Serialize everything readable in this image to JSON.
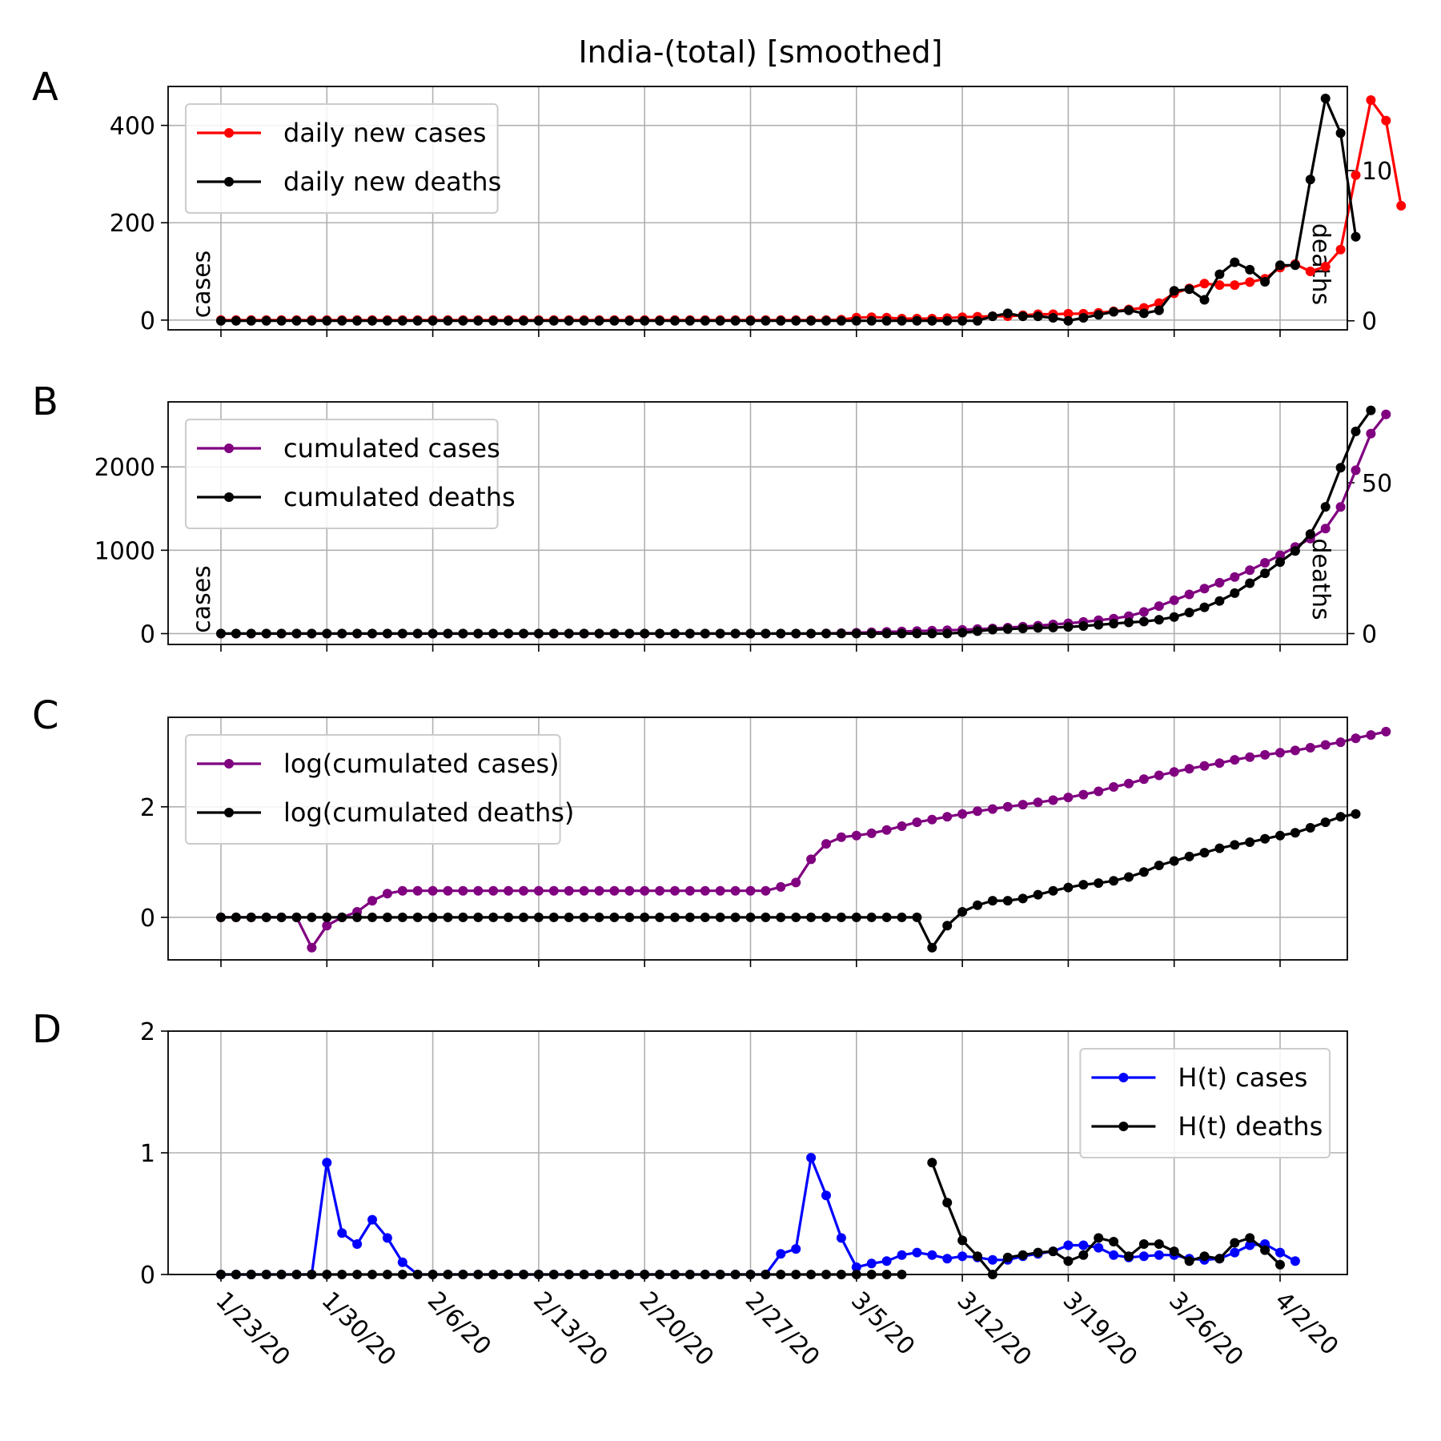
{
  "title": "India-(total) [smoothed]",
  "dates": [
    "1/23/20",
    "1/30/20",
    "2/6/20",
    "2/13/20",
    "2/20/20",
    "2/27/20",
    "3/5/20",
    "3/12/20",
    "3/19/20",
    "3/26/20",
    "4/2/20"
  ],
  "colors": {
    "cases_daily": "#ff0000",
    "cases_cum": "#800080",
    "cases_ht": "#0000ff",
    "deaths": "#000000",
    "grid": "#b0b0b0"
  },
  "chart_data": [
    {
      "panel_label": "A",
      "type": "line",
      "title": "India-(total) [smoothed]",
      "ylabel": "cases",
      "y2label": "deaths",
      "ylim": [
        -20,
        480
      ],
      "y2lim": [
        -0.6,
        15.6
      ],
      "yticks": [
        0,
        200,
        400
      ],
      "y2ticks": [
        0,
        10
      ],
      "grid": true,
      "legend_position": "top-left",
      "series": [
        {
          "name": "daily new cases",
          "axis": "left",
          "color": "#ff0000",
          "start": 0,
          "values": [
            0,
            0,
            0,
            0,
            0,
            0,
            0,
            0,
            0,
            0,
            0,
            0,
            0,
            0,
            0,
            0,
            0,
            0,
            0,
            0,
            0,
            0,
            0,
            0,
            0,
            0,
            0,
            0,
            0,
            0,
            0,
            0,
            0,
            0,
            0,
            0,
            0,
            0,
            0,
            0,
            0,
            1,
            5,
            6,
            5,
            3,
            3,
            3,
            4,
            6,
            7,
            8,
            8,
            10,
            12,
            12,
            13,
            13,
            15,
            18,
            22,
            25,
            35,
            55,
            65,
            75,
            72,
            72,
            78,
            85,
            108,
            115,
            100,
            110,
            145,
            298,
            452,
            410,
            235
          ]
        },
        {
          "name": "daily new deaths",
          "axis": "right",
          "color": "#000000",
          "start": 0,
          "values": [
            0,
            0,
            0,
            0,
            0,
            0,
            0,
            0,
            0,
            0,
            0,
            0,
            0,
            0,
            0,
            0,
            0,
            0,
            0,
            0,
            0,
            0,
            0,
            0,
            0,
            0,
            0,
            0,
            0,
            0,
            0,
            0,
            0,
            0,
            0,
            0,
            0,
            0,
            0,
            0,
            0,
            0,
            0,
            0,
            0,
            0,
            0,
            0,
            0,
            0,
            0,
            0.3,
            0.5,
            0.3,
            0.3,
            0.2,
            0,
            0.2,
            0.4,
            0.6,
            0.7,
            0.5,
            0.7,
            2,
            2.1,
            1.4,
            3.1,
            3.9,
            3.4,
            2.6,
            3.7,
            3.7,
            9.4,
            14.8,
            12.5,
            5.6
          ]
        }
      ]
    },
    {
      "panel_label": "B",
      "type": "line",
      "ylabel": "cases",
      "y2label": "deaths",
      "ylim": [
        -130,
        2780
      ],
      "y2lim": [
        -3.6,
        76.8
      ],
      "yticks": [
        0,
        1000,
        2000
      ],
      "y2ticks": [
        0,
        50
      ],
      "grid": true,
      "legend_position": "top-left",
      "series": [
        {
          "name": "cumulated cases",
          "axis": "left",
          "color": "#800080",
          "start": 0,
          "values": [
            0,
            0,
            0,
            0,
            0,
            0,
            0,
            0,
            0,
            0,
            0,
            0,
            0,
            0,
            0,
            0,
            0,
            0,
            0,
            0,
            0,
            0,
            0,
            0,
            0,
            0,
            0,
            0,
            0,
            0,
            0,
            0,
            0,
            0,
            0,
            0,
            0,
            0,
            0,
            0,
            3,
            5,
            10,
            16,
            21,
            26,
            31,
            35,
            40,
            46,
            54,
            62,
            72,
            84,
            96,
            110,
            124,
            140,
            160,
            180,
            210,
            260,
            330,
            400,
            470,
            540,
            610,
            680,
            760,
            850,
            940,
            1040,
            1140,
            1260,
            1520,
            1960,
            2400,
            2630
          ]
        },
        {
          "name": "cumulated deaths",
          "axis": "right",
          "color": "#000000",
          "start": 0,
          "values": [
            0,
            0,
            0,
            0,
            0,
            0,
            0,
            0,
            0,
            0,
            0,
            0,
            0,
            0,
            0,
            0,
            0,
            0,
            0,
            0,
            0,
            0,
            0,
            0,
            0,
            0,
            0,
            0,
            0,
            0,
            0,
            0,
            0,
            0,
            0,
            0,
            0,
            0,
            0,
            0,
            0,
            0,
            0,
            0,
            0,
            0,
            0,
            0,
            0,
            0.3,
            0.8,
            1.3,
            1.5,
            1.7,
            1.9,
            2,
            2.2,
            2.5,
            2.9,
            3.3,
            3.7,
            4,
            4.6,
            5.5,
            7,
            8.7,
            10.8,
            13.4,
            16.7,
            20,
            23.7,
            27.4,
            33,
            42,
            55,
            67,
            74
          ]
        }
      ]
    },
    {
      "panel_label": "C",
      "type": "line",
      "ylim": [
        -0.77,
        3.62
      ],
      "yticks": [
        0,
        2
      ],
      "grid": true,
      "legend_position": "top-left",
      "series": [
        {
          "name": "log(cumulated cases)",
          "color": "#800080",
          "start": 0,
          "values": [
            0,
            0,
            0,
            0,
            0,
            0,
            -0.55,
            -0.15,
            0,
            0.1,
            0.3,
            0.43,
            0.48,
            0.48,
            0.48,
            0.48,
            0.48,
            0.48,
            0.48,
            0.48,
            0.48,
            0.48,
            0.48,
            0.48,
            0.48,
            0.48,
            0.48,
            0.48,
            0.48,
            0.48,
            0.48,
            0.48,
            0.48,
            0.48,
            0.48,
            0.48,
            0.48,
            0.55,
            0.63,
            1.05,
            1.33,
            1.45,
            1.48,
            1.52,
            1.58,
            1.65,
            1.72,
            1.77,
            1.82,
            1.87,
            1.92,
            1.96,
            2.0,
            2.04,
            2.08,
            2.12,
            2.17,
            2.22,
            2.28,
            2.36,
            2.42,
            2.5,
            2.57,
            2.63,
            2.69,
            2.74,
            2.79,
            2.85,
            2.9,
            2.94,
            2.98,
            3.02,
            3.07,
            3.12,
            3.17,
            3.24,
            3.3,
            3.36
          ]
        },
        {
          "name": "log(cumulated deaths)",
          "color": "#000000",
          "start": 0,
          "values": [
            0,
            0,
            0,
            0,
            0,
            0,
            0,
            0,
            0,
            0,
            0,
            0,
            0,
            0,
            0,
            0,
            0,
            0,
            0,
            0,
            0,
            0,
            0,
            0,
            0,
            0,
            0,
            0,
            0,
            0,
            0,
            0,
            0,
            0,
            0,
            0,
            0,
            0,
            0,
            0,
            0,
            0,
            0,
            0,
            0,
            0,
            0,
            -0.55,
            -0.15,
            0.1,
            0.22,
            0.3,
            0.3,
            0.34,
            0.41,
            0.48,
            0.54,
            0.59,
            0.62,
            0.66,
            0.73,
            0.82,
            0.94,
            1.02,
            1.1,
            1.17,
            1.25,
            1.31,
            1.36,
            1.42,
            1.48,
            1.53,
            1.62,
            1.72,
            1.82,
            1.87
          ]
        }
      ]
    },
    {
      "panel_label": "D",
      "type": "line",
      "ylim": [
        0,
        2
      ],
      "yticks": [
        0,
        1,
        2
      ],
      "grid": true,
      "legend_position": "top-right",
      "series": [
        {
          "name": "H(t) cases",
          "color": "#0000ff",
          "start": 0,
          "values": [
            0,
            0,
            0,
            0,
            0,
            0,
            0,
            0.92,
            0.34,
            0.25,
            0.45,
            0.3,
            0.1,
            0,
            0,
            0,
            0,
            0,
            0,
            0,
            0,
            0,
            0,
            0,
            0,
            0,
            0,
            0,
            0,
            0,
            0,
            0,
            0,
            0,
            0,
            0,
            0,
            0.17,
            0.21,
            0.96,
            0.65,
            0.3,
            0.06,
            0.09,
            0.11,
            0.16,
            0.18,
            0.16,
            0.13,
            0.15,
            0.14,
            0.12,
            0.12,
            0.15,
            0.17,
            0.19,
            0.24,
            0.24,
            0.22,
            0.16,
            0.14,
            0.15,
            0.16,
            0.16,
            0.13,
            0.12,
            0.13,
            0.18,
            0.24,
            0.25,
            0.18,
            0.11
          ]
        },
        {
          "name": "H(t) deaths",
          "color": "#000000",
          "start": 0,
          "values": [
            0,
            0,
            0,
            0,
            0,
            0,
            0,
            0,
            0,
            0,
            0,
            0,
            0,
            0,
            0,
            0,
            0,
            0,
            0,
            0,
            0,
            0,
            0,
            0,
            0,
            0,
            0,
            0,
            0,
            0,
            0,
            0,
            0,
            0,
            0,
            0,
            0,
            0,
            0,
            0,
            0,
            0,
            0,
            0,
            0,
            0,
            null,
            0.92,
            0.59,
            0.28,
            0.15,
            0,
            0.14,
            0.16,
            0.18,
            0.19,
            0.11,
            0.16,
            0.3,
            0.27,
            0.15,
            0.25,
            0.25,
            0.19,
            0.11,
            0.15,
            0.13,
            0.26,
            0.3,
            0.2,
            0.08
          ]
        }
      ]
    }
  ]
}
